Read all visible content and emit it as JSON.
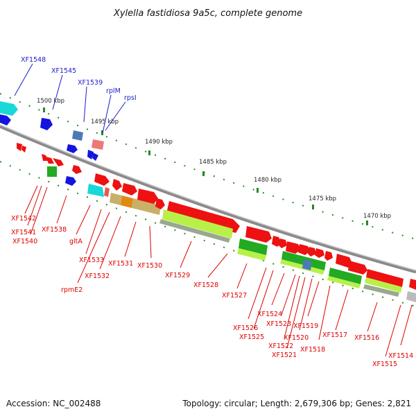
{
  "title": "Xylella fastidiosa 9a5c, complete genome",
  "footer": {
    "accession": "Accession: NC_002488",
    "topology": "Topology: circular; Length: 2,679,306 bp; Genes: 2,821"
  },
  "scale_labels": [
    "1500 kbp",
    "1495 kbp",
    "1490 kbp",
    "1485 kbp",
    "1480 kbp",
    "1475 kbp",
    "1470 kbp"
  ],
  "colors": {
    "label_upper": "#1a1acc",
    "label_lower": "#dd0000",
    "backbone": "#8a8a8a",
    "tick": "#228b22"
  },
  "upper_labels": [
    "XF1548",
    "XF1545",
    "XF1539",
    "rplM",
    "rpsI"
  ],
  "lower_labels": [
    "XF1542",
    "XF1541",
    "XF1540",
    "XF1538",
    "gltA",
    "XF1533",
    "rpmE2",
    "XF1532",
    "XF1531",
    "XF1530",
    "XF1529",
    "XF1528",
    "XF1527",
    "XF1526",
    "XF1525",
    "XF1524",
    "XF1523",
    "XF1522",
    "XF1521",
    "XF1520",
    "XF1519",
    "XF1518",
    "XF1517",
    "XF1516",
    "XF1515",
    "XF1514"
  ]
}
